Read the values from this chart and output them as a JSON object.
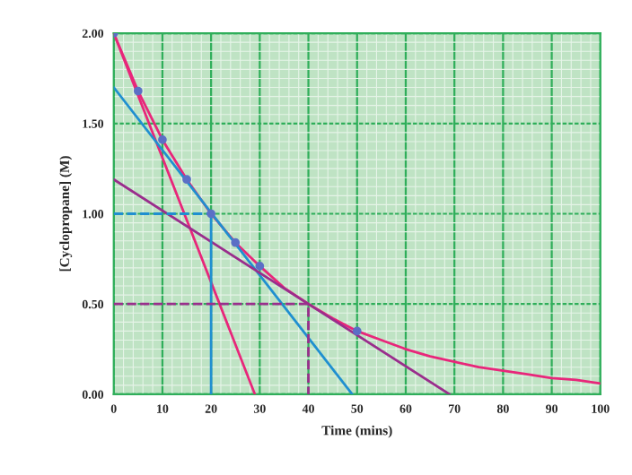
{
  "chart_data": {
    "type": "line",
    "xlabel": "Time (mins)",
    "ylabel": "[Cyclopropane] (M)",
    "xlim": [
      0,
      100
    ],
    "xticks": [
      0,
      10,
      20,
      30,
      40,
      50,
      60,
      70,
      80,
      90,
      100
    ],
    "ylim": [
      0,
      2.0
    ],
    "yticks": [
      {
        "value": 0,
        "label": "0.00"
      },
      {
        "value": 0.5,
        "label": "0.50"
      },
      {
        "value": 1.0,
        "label": "1.00"
      },
      {
        "value": 1.5,
        "label": "1.50"
      },
      {
        "value": 2.0,
        "label": "2.00"
      }
    ],
    "grid": true,
    "legend": false,
    "series": [
      {
        "color": "#e8267a",
        "x": [
          0,
          5,
          10,
          15,
          20,
          25,
          30,
          35,
          40,
          45,
          50,
          55,
          60,
          65,
          70,
          75,
          80,
          85,
          90,
          95,
          100
        ],
        "values": [
          2.0,
          1.68,
          1.41,
          1.19,
          1.0,
          0.84,
          0.71,
          0.59,
          0.5,
          0.42,
          0.35,
          0.3,
          0.25,
          0.21,
          0.18,
          0.15,
          0.13,
          0.11,
          0.09,
          0.08,
          0.06
        ]
      },
      {
        "color": "#e8267a",
        "x": [
          0,
          29
        ],
        "values": [
          2.0,
          0
        ]
      },
      {
        "color": "#1f8fd0",
        "x": [
          0,
          49
        ],
        "values": [
          1.7,
          0
        ]
      },
      {
        "color": "#9a2d8c",
        "x": [
          0,
          69
        ],
        "values": [
          1.19,
          0
        ]
      },
      {
        "color": "#1f8fd0",
        "line_style": "dashed",
        "x": [
          0,
          20
        ],
        "values": [
          1.0,
          1.0
        ]
      },
      {
        "color": "#1f8fd0",
        "x": [
          20,
          20
        ],
        "values": [
          1.0,
          0
        ]
      },
      {
        "color": "#9a2d8c",
        "line_style": "dashed",
        "x": [
          0,
          40,
          40
        ],
        "values": [
          0.5,
          0.5,
          0
        ]
      },
      {
        "type": "scatter",
        "color": "#5b6fc6",
        "marker": "circle",
        "x": [
          0,
          5,
          10,
          15,
          20,
          25,
          30,
          50
        ],
        "values": [
          2.0,
          1.68,
          1.41,
          1.19,
          1.0,
          0.84,
          0.71,
          0.35
        ]
      }
    ]
  }
}
